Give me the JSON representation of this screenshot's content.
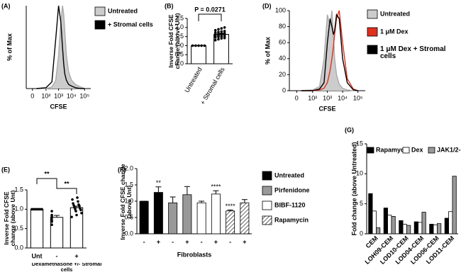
{
  "chart_data": [
    {
      "type": "area",
      "panel": "(A)",
      "x_label": "CFSE",
      "y_label": "% of Max",
      "xscale": "symlog",
      "x": [
        10,
        100,
        300,
        600,
        1000,
        1500,
        2000,
        2500,
        3000,
        4000,
        6000,
        10000,
        20000,
        50000,
        100000
      ],
      "xlim": [
        -20,
        300000
      ],
      "xticks": [
        0,
        {
          "value": 100,
          "label": "10²"
        },
        {
          "value": 1000,
          "label": "10³"
        },
        {
          "value": 10000,
          "label": "10⁴"
        },
        {
          "value": 100000,
          "label": "10⁵"
        }
      ],
      "ylim": [
        0,
        100
      ],
      "series": [
        {
          "name": "Untreated",
          "color": "#cccccc",
          "fill": true,
          "values": [
            0,
            0,
            2,
            10,
            40,
            80,
            100,
            90,
            70,
            40,
            20,
            10,
            5,
            2,
            0
          ]
        },
        {
          "name": "+ Stromal cells",
          "color": "#000000",
          "fill": false,
          "values": [
            0,
            1,
            8,
            60,
            100,
            80,
            50,
            30,
            18,
            10,
            5,
            3,
            1,
            0,
            0
          ]
        }
      ]
    },
    {
      "type": "bar",
      "panel": "(B)",
      "y_label": "Inverse Fold CFSE change (above Unt)",
      "categories": [
        "Untreated",
        "+ Stromal cells"
      ],
      "values": [
        1.0,
        1.62
      ],
      "errors": [
        0,
        0.04
      ],
      "points": [
        [
          1,
          1,
          1,
          1,
          1
        ],
        [
          1.3,
          1.35,
          1.4,
          1.42,
          1.45,
          1.48,
          1.5,
          1.5,
          1.52,
          1.55,
          1.55,
          1.58,
          1.6,
          1.6,
          1.62,
          1.63,
          1.65,
          1.66,
          1.68,
          1.7,
          1.72,
          1.75,
          1.78,
          1.8,
          1.85,
          1.9,
          1.95,
          2.0
        ]
      ],
      "color": "#ffffff",
      "ylim": [
        0,
        2.5
      ],
      "yticks": [
        {
          "value": 0,
          "label": "0.0"
        },
        {
          "value": 0.5,
          "label": "0.5"
        },
        {
          "value": 1,
          "label": "1.0"
        },
        {
          "value": 1.5,
          "label": "1.5"
        },
        {
          "value": 2,
          "label": "2.0"
        },
        {
          "value": 2.5,
          "label": "2.5"
        }
      ],
      "annotations": [
        "P = 0.0271"
      ]
    },
    {
      "type": "area",
      "panel": "(D)",
      "x_label": "CFSE",
      "y_label": "% of Max",
      "xscale": "symlog",
      "x": [
        10,
        100,
        300,
        600,
        1000,
        1500,
        2000,
        2500,
        3000,
        4000,
        6000,
        10000,
        20000,
        50000,
        100000
      ],
      "xlim": [
        -20,
        300000
      ],
      "xticks": [
        0,
        {
          "value": 100,
          "label": "10²"
        },
        {
          "value": 1000,
          "label": "10³"
        },
        {
          "value": 10000,
          "label": "10⁴"
        },
        {
          "value": 100000,
          "label": "10⁵"
        }
      ],
      "ylim": [
        0,
        100
      ],
      "yticks": [
        0,
        20,
        40,
        60,
        80,
        100
      ],
      "series": [
        {
          "name": "Untreated",
          "color": "#cccccc",
          "fill": true,
          "values": [
            0,
            1,
            5,
            40,
            95,
            80,
            100,
            70,
            40,
            20,
            8,
            3,
            1,
            0,
            0
          ]
        },
        {
          "name": "1 μM Dex",
          "color": "#e0301e",
          "fill": false,
          "values": [
            0,
            0,
            1,
            3,
            10,
            25,
            40,
            55,
            70,
            90,
            100,
            60,
            15,
            2,
            0
          ]
        },
        {
          "name": "1 μM Dex + Stromal cells",
          "color": "#000000",
          "fill": false,
          "values": [
            0,
            0,
            2,
            10,
            60,
            90,
            80,
            70,
            75,
            95,
            90,
            40,
            10,
            1,
            0
          ]
        }
      ]
    },
    {
      "type": "bar",
      "panel": "(E)",
      "y_label": "Inverse Fold CFSE change (above Unt)",
      "x_label": "Dexamethasone +/- Stromal cells",
      "categories": [
        "Unt",
        "-",
        "+"
      ],
      "values": [
        1.0,
        0.79,
        1.04
      ],
      "errors": [
        0,
        0.05,
        0.04
      ],
      "points": [
        [
          1,
          1,
          1,
          1,
          1,
          1
        ],
        [
          0.6,
          0.68,
          0.72,
          0.78,
          0.82,
          0.85,
          0.95
        ],
        [
          0.8,
          0.85,
          0.9,
          0.95,
          0.98,
          1.0,
          1.02,
          1.05,
          1.08,
          1.1,
          1.12,
          1.15,
          1.2,
          1.25,
          1.3
        ]
      ],
      "color": "#ffffff",
      "ylim": [
        0,
        1.5
      ],
      "yticks": [
        {
          "value": 0,
          "label": "0.0"
        },
        {
          "value": 0.5,
          "label": "0.5"
        },
        {
          "value": 1,
          "label": "1.0"
        },
        {
          "value": 1.5,
          "label": "1.5"
        }
      ],
      "annotations": [
        "**",
        "**"
      ]
    },
    {
      "type": "grouped_bar",
      "grouping": "series",
      "panel": "(F)",
      "y_label": "Inverse Fold CFSE change (above Unt)",
      "x_label": "Fibroblasts",
      "categories": [
        "-",
        "+"
      ],
      "ylim": [
        0,
        2.0
      ],
      "yticks": [
        {
          "value": 0,
          "label": "0.0"
        },
        {
          "value": 0.5,
          "label": "0.5"
        },
        {
          "value": 1,
          "label": "1.0"
        },
        {
          "value": 1.5,
          "label": "1.5"
        },
        {
          "value": 2,
          "label": "2.0"
        }
      ],
      "series": [
        {
          "name": "Untreated",
          "color": "#000000",
          "values": [
            1.0,
            1.27
          ],
          "errors": [
            0,
            0.17
          ],
          "significance": [
            null,
            "**"
          ]
        },
        {
          "name": "Pirfenidone",
          "color": "#999999",
          "values": [
            0.95,
            1.2
          ],
          "errors": [
            0.18,
            0.25
          ],
          "significance": [
            null,
            null
          ]
        },
        {
          "name": "BIBF-1120",
          "color": "#ffffff",
          "values": [
            0.95,
            1.22
          ],
          "errors": [
            0.05,
            0.1
          ],
          "significance": [
            null,
            "****"
          ]
        },
        {
          "name": "Rapamycin",
          "color": "#ffffff",
          "pattern": "hatch",
          "values": [
            0.7,
            0.95
          ],
          "errors": [
            0.03,
            0.1
          ],
          "significance": [
            "****",
            null
          ]
        }
      ]
    },
    {
      "type": "grouped_bar",
      "grouping": "category",
      "panel": "(G)",
      "y_label": "Fold change (above Untreated)",
      "categories": [
        "CEM",
        "LOH09-CEM",
        "LOD10-CEM",
        "LOD04-CEM",
        "LOD06-CEM",
        "LOD11-CEM"
      ],
      "ylim": [
        0,
        15
      ],
      "yticks": [
        0,
        5,
        10,
        15
      ],
      "series": [
        {
          "name": "Rapamycin",
          "color": "#000000",
          "values": [
            6.7,
            4.3,
            2.2,
            2.0,
            1.6,
            2.6
          ]
        },
        {
          "name": "Dex",
          "color": "#ffffff",
          "values": [
            3.8,
            3.1,
            1.6,
            1.9,
            1.5,
            3.7
          ]
        },
        {
          "name": "JAK1/2-I",
          "color": "#999999",
          "values": [
            1.0,
            2.9,
            1.4,
            3.6,
            1.7,
            9.6
          ]
        }
      ]
    }
  ]
}
